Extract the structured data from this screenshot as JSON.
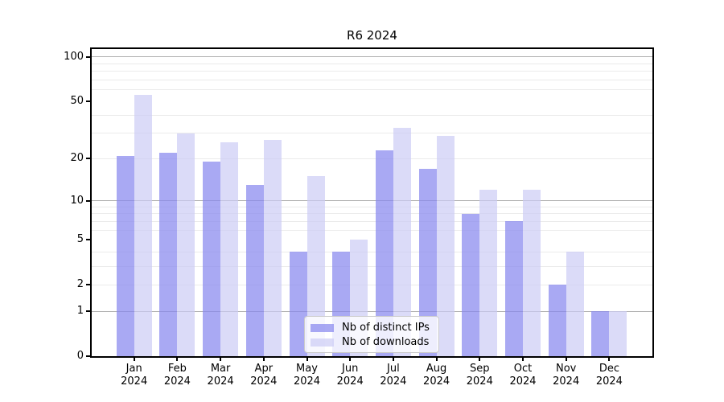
{
  "chart_data": {
    "type": "bar",
    "title": "R6 2024",
    "categories": [
      "Jan",
      "Feb",
      "Mar",
      "Apr",
      "May",
      "Jun",
      "Jul",
      "Aug",
      "Sep",
      "Oct",
      "Nov",
      "Dec"
    ],
    "category_year": "2024",
    "series": [
      {
        "name": "Nb of distinct IPs",
        "color": "rgba(136,136,238,0.72)",
        "values": [
          21,
          22,
          19,
          13,
          4,
          4,
          23,
          17,
          8,
          7,
          2,
          1
        ]
      },
      {
        "name": "Nb of downloads",
        "color": "rgba(204,204,245,0.70)",
        "values": [
          55,
          30,
          26,
          27,
          15,
          5,
          33,
          29,
          12,
          12,
          4,
          1
        ]
      }
    ],
    "xlabel": "",
    "ylabel": "",
    "yscale": "log1p",
    "ylim": [
      0,
      113
    ],
    "y_tick_labels": [
      0,
      1,
      2,
      5,
      10,
      20,
      50,
      100
    ],
    "y_major_gridlines": [
      1,
      10,
      100
    ],
    "y_minor_gridlines": [
      2,
      3,
      4,
      6,
      7,
      8,
      9,
      20,
      30,
      40,
      60,
      70,
      80,
      90
    ],
    "grid": true,
    "legend_position": "lower center inside"
  },
  "colors": {
    "background": "#ffffff",
    "axis": "#000000",
    "major_grid": "#b0b0b0",
    "minor_grid": "#ebebeb",
    "bar_distinct_ips": "rgba(136,136,238,0.72)",
    "bar_downloads": "rgba(204,204,245,0.70)"
  }
}
